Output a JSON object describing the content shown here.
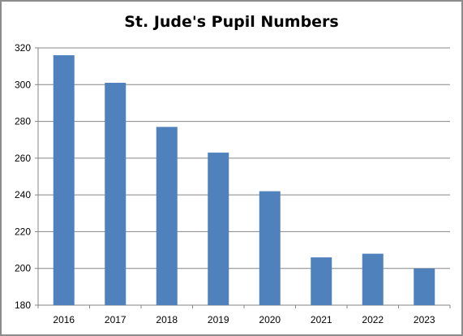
{
  "chart_data": {
    "type": "bar",
    "title": "St. Jude's Pupil Numbers",
    "xlabel": "",
    "ylabel": "",
    "categories": [
      "2016",
      "2017",
      "2018",
      "2019",
      "2020",
      "2021",
      "2022",
      "2023"
    ],
    "values": [
      316,
      301,
      277,
      263,
      242,
      206,
      208,
      200
    ],
    "ylim": [
      180,
      320
    ],
    "yticks": [
      "180",
      "200",
      "220",
      "240",
      "260",
      "280",
      "300",
      "320"
    ],
    "grid": true,
    "legend": "none",
    "bar_color": "#4f81bd",
    "grid_color": "#868686"
  }
}
